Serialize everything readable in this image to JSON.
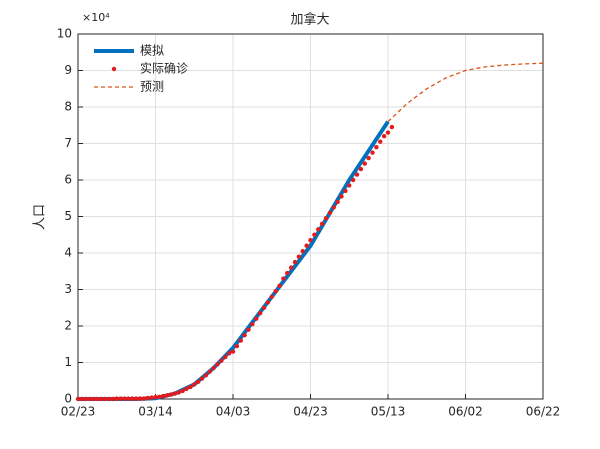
{
  "chart_data": {
    "type": "line",
    "title": "加拿大",
    "ylabel": "人口",
    "y_scale_label": "×10⁴",
    "xlim": [
      0,
      120
    ],
    "ylim": [
      0,
      10
    ],
    "xticks": [
      {
        "value": 0,
        "label": "02/23"
      },
      {
        "value": 20,
        "label": "03/14"
      },
      {
        "value": 40,
        "label": "04/03"
      },
      {
        "value": 60,
        "label": "04/23"
      },
      {
        "value": 80,
        "label": "05/13"
      },
      {
        "value": 100,
        "label": "06/02"
      },
      {
        "value": 120,
        "label": "06/22"
      }
    ],
    "yticks": [
      0,
      1,
      2,
      3,
      4,
      5,
      6,
      7,
      8,
      9,
      10
    ],
    "grid": true,
    "legend": "upper left",
    "series": [
      {
        "name": "模拟",
        "color": "#0072bd",
        "style": "thick",
        "x": [
          0,
          5,
          10,
          15,
          20,
          25,
          30,
          35,
          40,
          45,
          50,
          55,
          60,
          65,
          70,
          75,
          80
        ],
        "values": [
          0,
          0,
          0,
          0,
          0.02,
          0.15,
          0.4,
          0.85,
          1.4,
          2.1,
          2.8,
          3.5,
          4.2,
          5.1,
          6.0,
          6.8,
          7.6
        ]
      },
      {
        "name": "实际确诊",
        "color": "#e41a1c",
        "style": "dots",
        "x": [
          0,
          1,
          2,
          3,
          4,
          5,
          6,
          7,
          8,
          9,
          10,
          11,
          12,
          13,
          14,
          15,
          16,
          17,
          18,
          19,
          20,
          21,
          22,
          23,
          24,
          25,
          26,
          27,
          28,
          29,
          30,
          31,
          32,
          33,
          34,
          35,
          36,
          37,
          38,
          39,
          40,
          41,
          42,
          43,
          44,
          45,
          46,
          47,
          48,
          49,
          50,
          51,
          52,
          53,
          54,
          55,
          56,
          57,
          58,
          59,
          60,
          61,
          62,
          63,
          64,
          65,
          66,
          67,
          68,
          69,
          70,
          71,
          72,
          73,
          74,
          75,
          76,
          77,
          78,
          79,
          80,
          81
        ],
        "values": [
          0,
          0,
          0,
          0,
          0,
          0,
          0,
          0,
          0,
          0,
          0.01,
          0.01,
          0.01,
          0.01,
          0.01,
          0.01,
          0.01,
          0.01,
          0.03,
          0.04,
          0.05,
          0.06,
          0.08,
          0.1,
          0.12,
          0.15,
          0.18,
          0.22,
          0.28,
          0.33,
          0.4,
          0.47,
          0.56,
          0.65,
          0.75,
          0.85,
          0.95,
          1.05,
          1.15,
          1.25,
          1.3,
          1.45,
          1.6,
          1.75,
          1.9,
          2.05,
          2.2,
          2.35,
          2.5,
          2.65,
          2.8,
          2.95,
          3.1,
          3.3,
          3.45,
          3.6,
          3.75,
          3.9,
          4.05,
          4.2,
          4.35,
          4.5,
          4.65,
          4.8,
          4.95,
          5.1,
          5.25,
          5.4,
          5.55,
          5.7,
          5.85,
          6.0,
          6.15,
          6.3,
          6.45,
          6.6,
          6.75,
          6.9,
          7.05,
          7.2,
          7.3,
          7.45
        ]
      },
      {
        "name": "预测",
        "color": "#d95319",
        "style": "dashed",
        "x": [
          80,
          85,
          90,
          95,
          100,
          105,
          110,
          115,
          120
        ],
        "values": [
          7.6,
          8.1,
          8.5,
          8.8,
          9.0,
          9.1,
          9.15,
          9.18,
          9.2
        ]
      }
    ]
  }
}
